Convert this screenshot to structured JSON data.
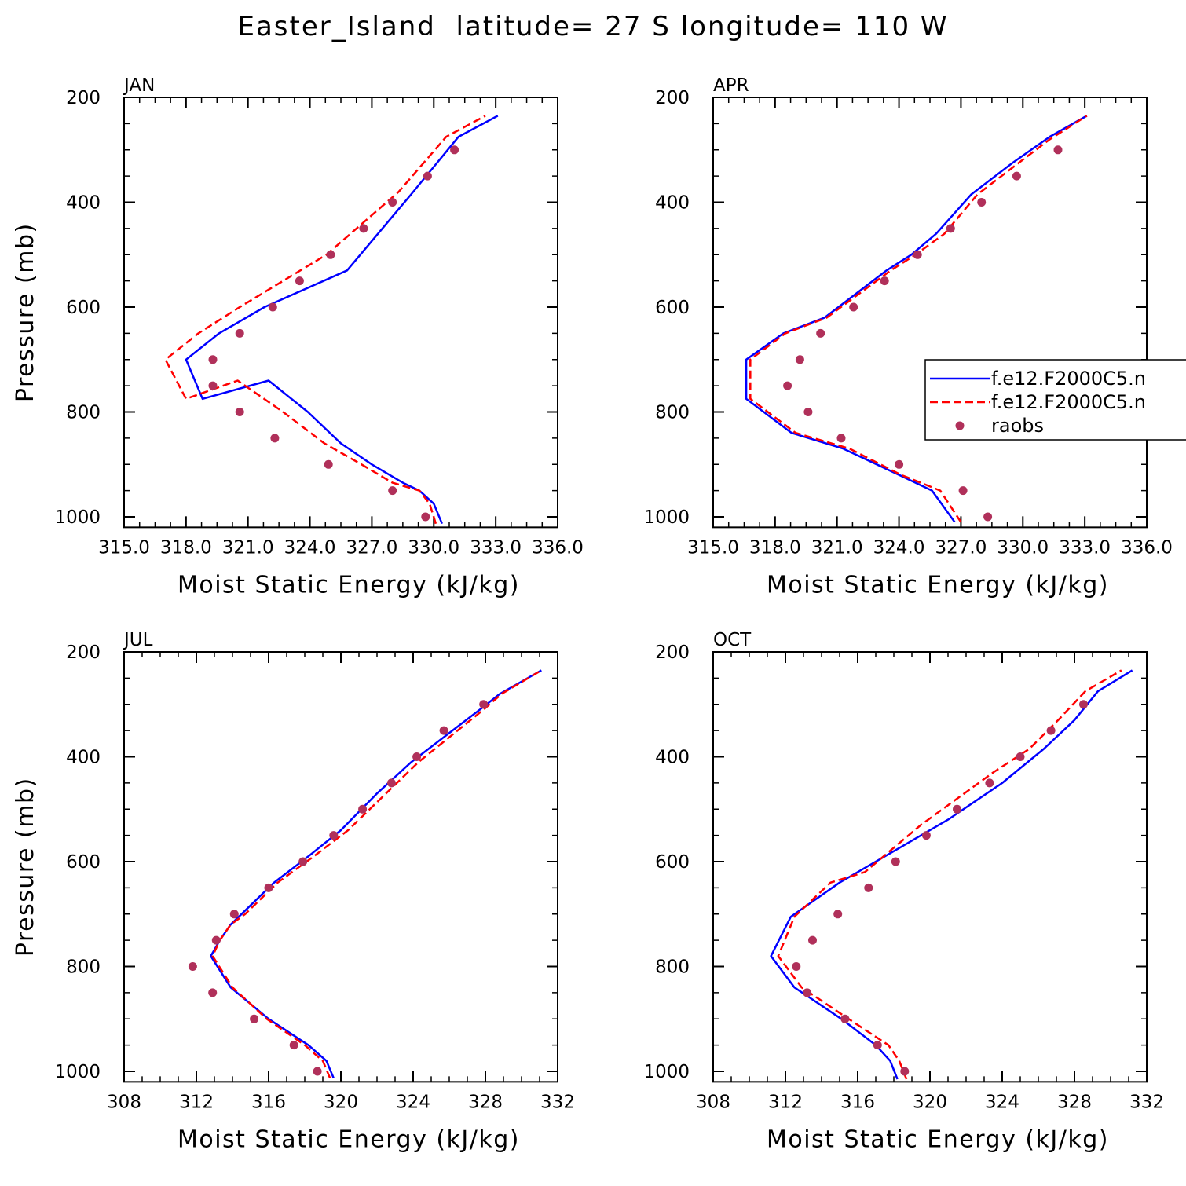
{
  "title": "Easter_Island  latitude= 27 S longitude= 110 W",
  "colors": {
    "model1": "#0000ff",
    "model2": "#ff0000",
    "obs": "#b0305a"
  },
  "legend": {
    "entries": [
      {
        "label": "f.e12.F2000C5.n",
        "style": "solid",
        "color": "#0000ff"
      },
      {
        "label": "f.e12.F2000C5.n",
        "style": "dashed",
        "color": "#ff0000"
      },
      {
        "label": "raobs",
        "style": "marker",
        "color": "#b0305a"
      }
    ]
  },
  "chart_data": [
    {
      "type": "line",
      "title": "JAN",
      "xlabel": "Moist Static Energy (kJ/kg)",
      "ylabel": "Pressure (mb)",
      "xlim": [
        315,
        336
      ],
      "ylim": [
        1020,
        200
      ],
      "xticks": [
        "315.0",
        "318.0",
        "321.0",
        "324.0",
        "327.0",
        "330.0",
        "333.0",
        "336.0"
      ],
      "yticks": [
        "200",
        "400",
        "600",
        "800",
        "1000"
      ],
      "series": [
        {
          "style": "solid",
          "x": [
            330.4,
            330.0,
            329.3,
            328.5,
            327.0,
            325.5,
            323.9,
            322.0,
            318.8,
            318.0,
            319.6,
            321.8,
            325.8,
            328.9,
            331.2,
            333.1
          ],
          "y": [
            1013,
            975,
            950,
            935,
            900,
            860,
            800,
            740,
            775,
            700,
            650,
            600,
            530,
            385,
            275,
            235
          ]
        },
        {
          "style": "dashed",
          "x": [
            330.1,
            329.8,
            329.3,
            328.0,
            326.5,
            324.7,
            322.7,
            320.5,
            318.0,
            317.0,
            318.6,
            320.6,
            324.8,
            328.3,
            330.6,
            332.5
          ],
          "y": [
            1013,
            975,
            950,
            935,
            900,
            860,
            800,
            740,
            775,
            700,
            650,
            600,
            500,
            380,
            275,
            235
          ]
        }
      ],
      "obs": {
        "x": [
          329.6,
          328.0,
          324.9,
          322.3,
          320.6,
          319.3,
          319.3,
          320.6,
          322.2,
          323.5,
          325.0,
          326.6,
          328.0,
          329.7,
          331.0
        ],
        "y": [
          1000,
          950,
          900,
          850,
          800,
          750,
          700,
          650,
          600,
          550,
          500,
          450,
          400,
          350,
          300
        ]
      }
    },
    {
      "type": "line",
      "title": "APR",
      "xlabel": "Moist Static Energy (kJ/kg)",
      "ylabel": "",
      "xlim": [
        315,
        336
      ],
      "ylim": [
        1020,
        200
      ],
      "xticks": [
        "315.0",
        "318.0",
        "321.0",
        "324.0",
        "327.0",
        "330.0",
        "333.0",
        "336.0"
      ],
      "yticks": [
        "200",
        "400",
        "600",
        "800",
        "1000"
      ],
      "series": [
        {
          "style": "solid",
          "x": [
            326.7,
            325.6,
            324.0,
            321.3,
            318.8,
            316.6,
            316.6,
            318.4,
            320.4,
            323.4,
            324.6,
            325.8,
            327.5,
            329.5,
            331.3,
            333.1
          ],
          "y": [
            1010,
            950,
            920,
            870,
            840,
            775,
            700,
            650,
            620,
            530,
            500,
            460,
            385,
            325,
            275,
            235
          ]
        },
        {
          "style": "dashed",
          "x": [
            327.0,
            326.0,
            324.1,
            321.6,
            319.0,
            316.8,
            316.8,
            318.5,
            320.5,
            323.6,
            324.8,
            326.2,
            327.8,
            329.8,
            331.3,
            333.1
          ],
          "y": [
            1010,
            950,
            920,
            870,
            840,
            775,
            700,
            650,
            620,
            530,
            500,
            460,
            385,
            325,
            280,
            235
          ]
        }
      ],
      "obs": {
        "x": [
          328.3,
          327.1,
          324.0,
          321.2,
          319.6,
          318.6,
          319.2,
          320.2,
          321.8,
          323.3,
          324.9,
          326.5,
          328.0,
          329.7,
          331.7
        ],
        "y": [
          1000,
          950,
          900,
          850,
          800,
          750,
          700,
          650,
          600,
          550,
          500,
          450,
          400,
          350,
          300
        ]
      }
    },
    {
      "type": "line",
      "title": "JUL",
      "xlabel": "Moist Static Energy (kJ/kg)",
      "ylabel": "Pressure (mb)",
      "xlim": [
        308,
        332
      ],
      "ylim": [
        1020,
        200
      ],
      "xticks": [
        "308",
        "312",
        "316",
        "320",
        "324",
        "328",
        "332"
      ],
      "yticks": [
        "200",
        "400",
        "600",
        "800",
        "1000"
      ],
      "series": [
        {
          "style": "solid",
          "x": [
            319.6,
            319.2,
            318.2,
            316.0,
            313.9,
            312.8,
            313.3,
            313.9,
            314.5,
            316.3,
            318.2,
            320.0,
            322.0,
            323.9,
            325.8,
            327.7,
            328.8,
            331.1
          ],
          "y": [
            1013,
            980,
            950,
            900,
            840,
            780,
            750,
            720,
            700,
            640,
            590,
            540,
            470,
            410,
            360,
            310,
            280,
            235
          ]
        },
        {
          "style": "dashed",
          "x": [
            319.4,
            319.0,
            318.0,
            315.9,
            314.0,
            312.9,
            313.3,
            313.9,
            314.7,
            316.5,
            318.5,
            320.4,
            322.5,
            324.3,
            326.1,
            327.9,
            328.9,
            331.1
          ],
          "y": [
            1013,
            980,
            950,
            900,
            840,
            780,
            750,
            720,
            700,
            640,
            590,
            540,
            470,
            410,
            360,
            310,
            280,
            235
          ]
        }
      ],
      "obs": {
        "x": [
          318.7,
          317.4,
          315.2,
          312.9,
          311.8,
          313.1,
          314.1,
          316.0,
          317.9,
          319.6,
          321.2,
          322.8,
          324.2,
          325.7,
          327.9
        ],
        "y": [
          1000,
          950,
          900,
          850,
          800,
          750,
          700,
          650,
          600,
          550,
          500,
          450,
          400,
          350,
          300
        ]
      }
    },
    {
      "type": "line",
      "title": "OCT",
      "xlabel": "Moist Static Energy (kJ/kg)",
      "ylabel": "",
      "xlim": [
        308,
        332
      ],
      "ylim": [
        1020,
        200
      ],
      "xticks": [
        "308",
        "312",
        "316",
        "320",
        "324",
        "328",
        "332"
      ],
      "yticks": [
        "200",
        "400",
        "600",
        "800",
        "1000"
      ],
      "series": [
        {
          "style": "solid",
          "x": [
            318.2,
            317.8,
            317.0,
            315.1,
            312.5,
            311.2,
            312.3,
            315.0,
            318.0,
            321.0,
            324.0,
            326.3,
            328.0,
            329.3,
            331.2
          ],
          "y": [
            1015,
            980,
            950,
            900,
            840,
            780,
            705,
            640,
            580,
            520,
            450,
            385,
            330,
            275,
            235
          ]
        },
        {
          "style": "dashed",
          "x": [
            318.7,
            318.3,
            317.7,
            315.5,
            312.9,
            311.6,
            312.5,
            314.5,
            316.4,
            319.5,
            323.5,
            325.5,
            327.1,
            328.6,
            330.6
          ],
          "y": [
            1015,
            980,
            950,
            900,
            840,
            780,
            705,
            640,
            620,
            530,
            430,
            385,
            330,
            275,
            235
          ]
        }
      ],
      "obs": {
        "x": [
          318.6,
          317.1,
          315.3,
          313.2,
          312.6,
          313.5,
          314.9,
          316.6,
          318.1,
          319.8,
          321.5,
          323.3,
          325.0,
          326.7,
          328.5
        ],
        "y": [
          1000,
          950,
          900,
          850,
          800,
          750,
          700,
          650,
          600,
          550,
          500,
          450,
          400,
          350,
          300
        ]
      }
    }
  ]
}
